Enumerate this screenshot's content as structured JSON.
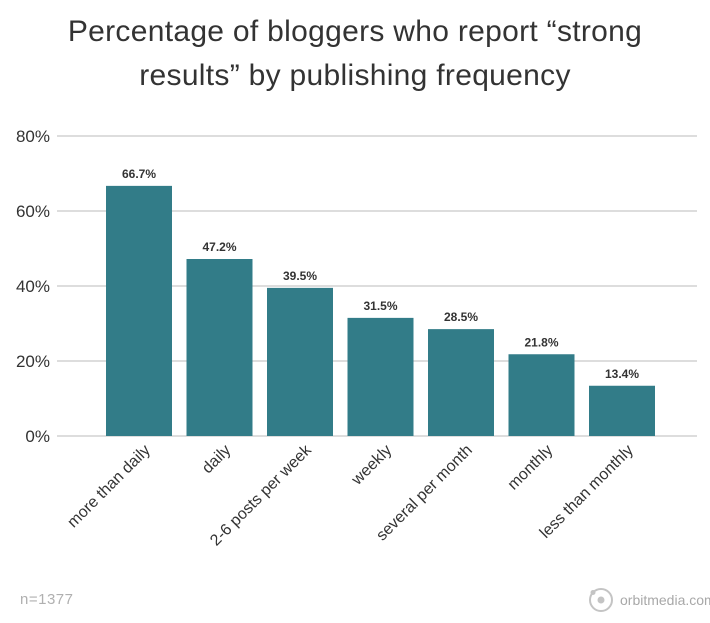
{
  "chart_data": {
    "type": "bar",
    "title_lines": [
      "Percentage of bloggers who report “strong",
      "results” by publishing frequency"
    ],
    "categories": [
      "more than daily",
      "daily",
      "2-6 posts per week",
      "weekly",
      "several per month",
      "monthly",
      "less than monthly"
    ],
    "values": [
      66.7,
      47.2,
      39.5,
      31.5,
      28.5,
      21.8,
      13.4
    ],
    "data_labels": [
      "66.7%",
      "47.2%",
      "39.5%",
      "31.5%",
      "28.5%",
      "21.8%",
      "13.4%"
    ],
    "xlabel": "",
    "ylabel": "",
    "ylim": [
      0,
      80
    ],
    "yticks": [
      0,
      20,
      40,
      60,
      80
    ],
    "ytick_labels": [
      "0%",
      "20%",
      "40%",
      "60%",
      "80%"
    ],
    "grid": true,
    "bar_color": "#327c88",
    "grid_color": "#dddddd"
  },
  "footnote": "n=1377",
  "brand": {
    "text": "orbitmedia.com",
    "icon": "orbit-logo-icon"
  }
}
